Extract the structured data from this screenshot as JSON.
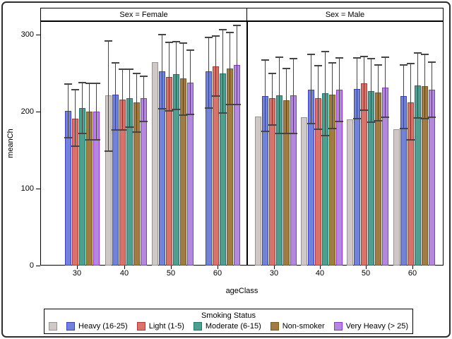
{
  "chart_data": {
    "type": "bar",
    "title": "",
    "xlabel": "ageClass",
    "ylabel": "meanCh",
    "ylim": [
      0,
      320
    ],
    "yticks": [
      0,
      100,
      200,
      300
    ],
    "grid": false,
    "error_bars": true,
    "legend_title": "Smoking Status",
    "legend_position": "bottom",
    "categories": [
      "30",
      "40",
      "50",
      "60"
    ],
    "panels": [
      {
        "header": "Sex = Female",
        "series": [
          {
            "name": "",
            "color": "#cfc8c6",
            "border": "#949494",
            "values": [
              null,
              221,
              264,
              null
            ],
            "error_low": [
              null,
              149,
              null,
              null
            ],
            "error_high": [
              null,
              292,
              null,
              null
            ]
          },
          {
            "name": "Heavy (16-25)",
            "color": "#7282d8",
            "border": "#3b40c8",
            "values": [
              201,
              222,
              252,
              252
            ],
            "error_low": [
              166,
              176,
              204,
              205
            ],
            "error_high": [
              236,
              263,
              300,
              296
            ]
          },
          {
            "name": "Light (1-5)",
            "color": "#d8736c",
            "border": "#b8342c",
            "values": [
              191,
              216,
              245,
              259
            ],
            "error_low": [
              155,
              176,
              201,
              220
            ],
            "error_high": [
              228,
              255,
              290,
              298
            ]
          },
          {
            "name": "Moderate (6-15)",
            "color": "#4f9e90",
            "border": "#0f7d68",
            "values": [
              205,
              217,
              249,
              250
            ],
            "error_low": [
              172,
              180,
              203,
              198
            ],
            "error_high": [
              238,
              255,
              291,
              306
            ]
          },
          {
            "name": "Non-smoker",
            "color": "#a07c42",
            "border": "#7c5a14",
            "values": [
              200,
              212,
              243,
              256
            ],
            "error_low": [
              163,
              173,
              195,
              209
            ],
            "error_high": [
              237,
              250,
              289,
              303
            ]
          },
          {
            "name": "Very Heavy (> 25)",
            "color": "#b488dd",
            "border": "#8f35d8",
            "values": [
              200,
              217,
              238,
              261
            ],
            "error_low": [
              163,
              187,
              196,
              209
            ],
            "error_high": [
              237,
              246,
              280,
              312
            ]
          }
        ]
      },
      {
        "header": "Sex = Male",
        "series": [
          {
            "name": "",
            "color": "#cfc8c6",
            "border": "#949494",
            "values": [
              194,
              193,
              190,
              177
            ],
            "error_low": [
              null,
              null,
              null,
              null
            ],
            "error_high": [
              null,
              null,
              null,
              null
            ]
          },
          {
            "name": "Heavy (16-25)",
            "color": "#7282d8",
            "border": "#3b40c8",
            "values": [
              220,
              228,
              229,
              220
            ],
            "error_low": [
              174,
              184,
              191,
              178
            ],
            "error_high": [
              267,
              274,
              270,
              261
            ]
          },
          {
            "name": "Light (1-5)",
            "color": "#d8736c",
            "border": "#b8342c",
            "values": [
              217,
              217,
              237,
              212
            ],
            "error_low": [
              183,
              177,
              202,
              163
            ],
            "error_high": [
              250,
              260,
              272,
              262
            ]
          },
          {
            "name": "Moderate (6-15)",
            "color": "#4f9e90",
            "border": "#0f7d68",
            "values": [
              221,
              224,
              227,
              234
            ],
            "error_low": [
              172,
              169,
              186,
              192
            ],
            "error_high": [
              271,
              278,
              269,
              276
            ]
          },
          {
            "name": "Non-smoker",
            "color": "#a07c42",
            "border": "#7c5a14",
            "values": [
              215,
              222,
              225,
              233
            ],
            "error_low": [
              172,
              178,
              188,
              191
            ],
            "error_high": [
              256,
              263,
              261,
              274
            ]
          },
          {
            "name": "Very Heavy (> 25)",
            "color": "#b488dd",
            "border": "#8f35d8",
            "values": [
              221,
              228,
              231,
              228
            ],
            "error_low": [
              172,
              187,
              193,
              193
            ],
            "error_high": [
              269,
              270,
              271,
              264
            ]
          }
        ]
      }
    ]
  }
}
